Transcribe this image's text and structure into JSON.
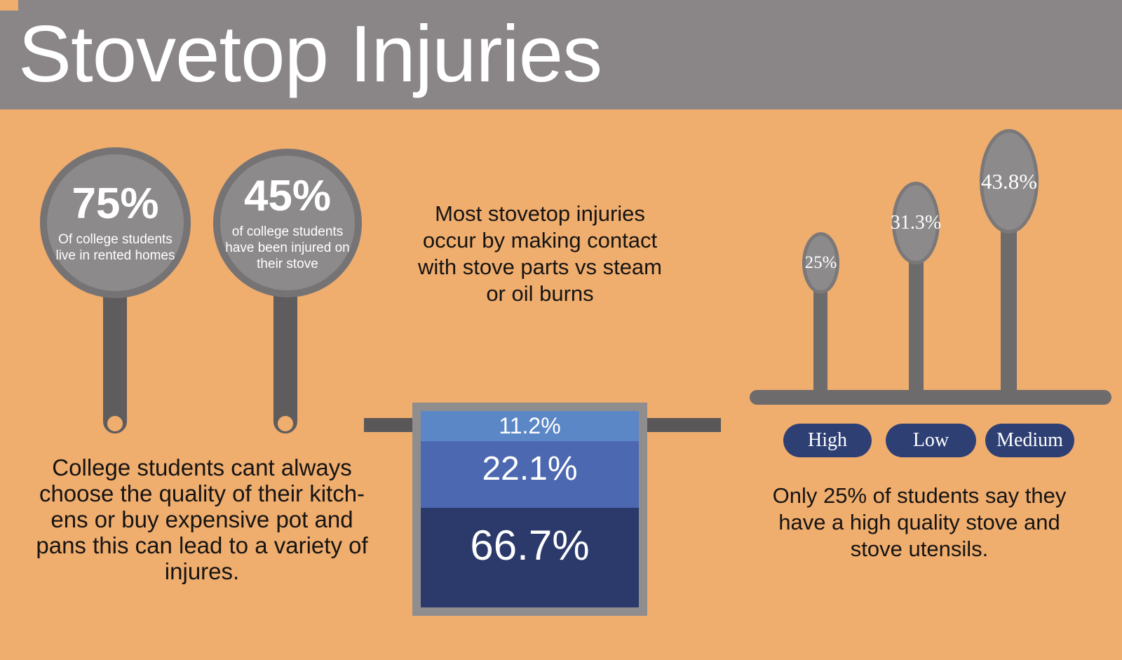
{
  "title": "Stovetop Injuries",
  "pans": {
    "items": [
      {
        "value": "75%",
        "caption": "Of college students\nlive in rented homes"
      },
      {
        "value": "45%",
        "caption": "of college students\nhave been injured on\ntheir stove"
      }
    ]
  },
  "notes": {
    "center": "Most stovetop injuries\noccur by making contact\nwith stove parts vs steam\nor oil burns",
    "left": "College students cant always\nchoose the quality of their kitch-\nens or buy expensive pot and\npans this can lead to a variety of\ninjures.",
    "right": "Only 25% of students say they\nhave a high quality stove and\nstove utensils."
  },
  "pot": {
    "segments": [
      {
        "value": "11.2%",
        "color": "#5c87c6"
      },
      {
        "value": "22.1%",
        "color": "#4c68b0"
      },
      {
        "value": "66.7%",
        "color": "#2b3a6b"
      }
    ]
  },
  "spoons": {
    "items": [
      {
        "value": "25%",
        "label": "High"
      },
      {
        "value": "31.3%",
        "label": "Low"
      },
      {
        "value": "43.8%",
        "label": "Medium"
      }
    ]
  },
  "colors": {
    "background": "#efad6e",
    "header_gray": "#8a8687",
    "pan_fill": "#8d8a8b",
    "pan_ring": "#767374",
    "handle_dark": "#5e5c5c",
    "pot_border_gray": "#8f8d8e",
    "spoon_gray": "#6e6b6c",
    "pill_navy": "#2e3f74",
    "text_black": "#161413",
    "text_white": "#ffffff"
  },
  "chart_data": [
    {
      "type": "pie",
      "subtype": "pan-stat-circles",
      "items": [
        {
          "value": 75,
          "label": "Of college students live in rented homes"
        },
        {
          "value": 45,
          "label": "of college students have been injured on their stove"
        }
      ],
      "unit": "%"
    },
    {
      "type": "bar",
      "subtype": "stacked-pot",
      "title": "Most stovetop injuries occur by making contact with stove parts vs steam or oil burns",
      "values": [
        11.2,
        22.1,
        66.7
      ],
      "unit": "%",
      "colors": [
        "#5c87c6",
        "#4c68b0",
        "#2b3a6b"
      ]
    },
    {
      "type": "bar",
      "subtype": "spoon-heights",
      "categories": [
        "High",
        "Low",
        "Medium"
      ],
      "values": [
        25,
        31.3,
        43.8
      ],
      "unit": "%",
      "note": "Only 25% of students say they have a high quality stove and stove utensils."
    }
  ]
}
